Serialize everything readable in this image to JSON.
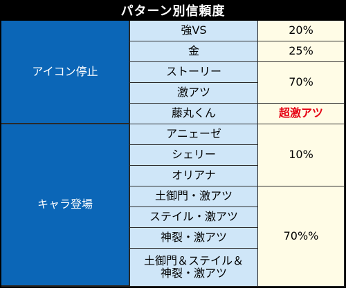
{
  "title": "パターン別信頼度",
  "groups": {
    "icon_stop": "アイコン停止",
    "chara_appear": "キャラ登場"
  },
  "patterns": [
    "強VS",
    "金",
    "ストーリー",
    "激アツ",
    "藤丸くん",
    "アニェーゼ",
    "シェリー",
    "オリアナ",
    "土御門・激アツ",
    "ステイル・激アツ",
    "神裂・激アツ",
    "土御門＆ステイル＆神裂・激アツ"
  ],
  "values": {
    "vs": "20%",
    "gold": "25%",
    "story_gekiatsu": "70%",
    "fujimaru": "超激アツ",
    "chara_girls": "10%",
    "chara_gekiatsu": "70%%"
  },
  "colors": {
    "category_bg": "#0b66b7",
    "pattern_bg": "#cfe6f8",
    "value_bg": "#fffce6",
    "highlight_text": "#e60012"
  }
}
